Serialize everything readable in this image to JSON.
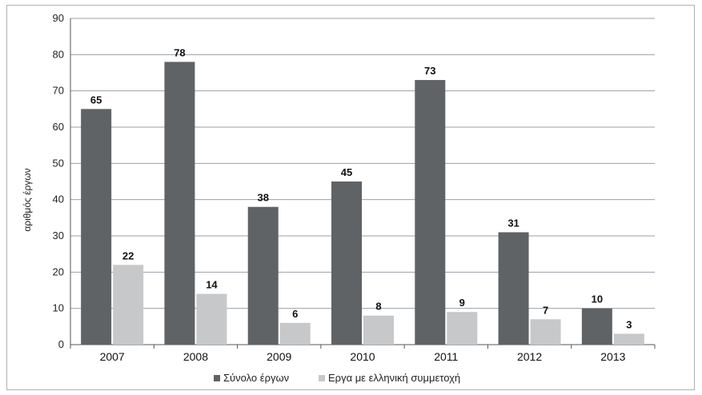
{
  "chart_data": {
    "type": "bar",
    "title": "",
    "xlabel": "",
    "ylabel": "αριθμός έργων",
    "ylim": [
      0,
      90
    ],
    "yticks": [
      0,
      10,
      20,
      30,
      40,
      50,
      60,
      70,
      80,
      90
    ],
    "grid": true,
    "legend_position": "bottom",
    "categories": [
      "2007",
      "2008",
      "2009",
      "2010",
      "2011",
      "2012",
      "2013"
    ],
    "series": [
      {
        "name": "Σύνολο έργων",
        "color": "#5f6366",
        "values": [
          65,
          78,
          38,
          45,
          73,
          31,
          10
        ]
      },
      {
        "name": "Εργα με ελληνική συμμετοχή",
        "color": "#c6c8ca",
        "values": [
          22,
          14,
          6,
          8,
          9,
          7,
          3
        ]
      }
    ]
  }
}
